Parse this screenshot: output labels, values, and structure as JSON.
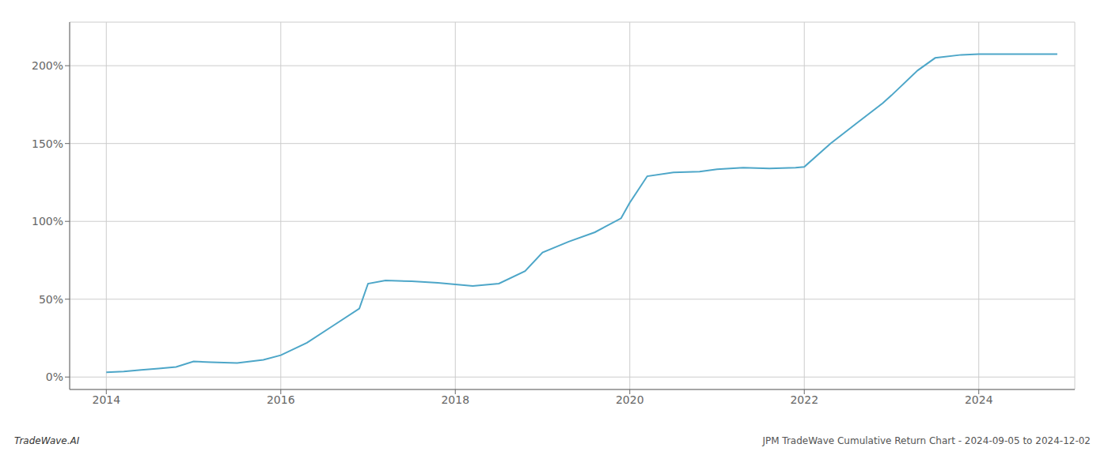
{
  "chart_data": {
    "type": "line",
    "title": "JPM TradeWave Cumulative Return Chart - 2024-09-05 to 2024-12-02",
    "annotations": [
      "TradeWave.AI"
    ],
    "color": "#4da6c8",
    "grid": true,
    "x": [
      2014.0,
      2014.2,
      2014.4,
      2014.6,
      2014.8,
      2015.0,
      2015.2,
      2015.5,
      2015.8,
      2016.0,
      2016.3,
      2016.6,
      2016.9,
      2017.0,
      2017.2,
      2017.5,
      2017.8,
      2018.0,
      2018.2,
      2018.5,
      2018.8,
      2019.0,
      2019.3,
      2019.6,
      2019.9,
      2020.0,
      2020.2,
      2020.5,
      2020.8,
      2021.0,
      2021.3,
      2021.6,
      2021.9,
      2022.0,
      2022.3,
      2022.6,
      2022.9,
      2023.0,
      2023.3,
      2023.5,
      2023.8,
      2024.0,
      2024.5,
      2024.9
    ],
    "values": [
      3.0,
      3.5,
      4.5,
      5.5,
      6.5,
      10.0,
      9.5,
      9.0,
      11.0,
      14.0,
      22.0,
      33.0,
      44.0,
      60.0,
      62.0,
      61.5,
      60.5,
      59.5,
      58.5,
      60.0,
      68.0,
      80.0,
      87.0,
      93.0,
      102.0,
      112.0,
      129.0,
      131.5,
      132.0,
      133.5,
      134.5,
      134.0,
      134.5,
      135.0,
      150.0,
      163.0,
      176.0,
      181.0,
      197.0,
      205.0,
      207.0,
      207.5,
      207.5,
      207.5
    ],
    "xlim": [
      2013.58,
      2025.1
    ],
    "ylim": [
      -8,
      228
    ],
    "xticks": [
      2014,
      2016,
      2018,
      2020,
      2022,
      2024
    ],
    "yticks": [
      {
        "value": 0,
        "label": "0%"
      },
      {
        "value": 50,
        "label": "50%"
      },
      {
        "value": 100,
        "label": "100%"
      },
      {
        "value": 150,
        "label": "150%"
      },
      {
        "value": 200,
        "label": "200%"
      }
    ]
  }
}
